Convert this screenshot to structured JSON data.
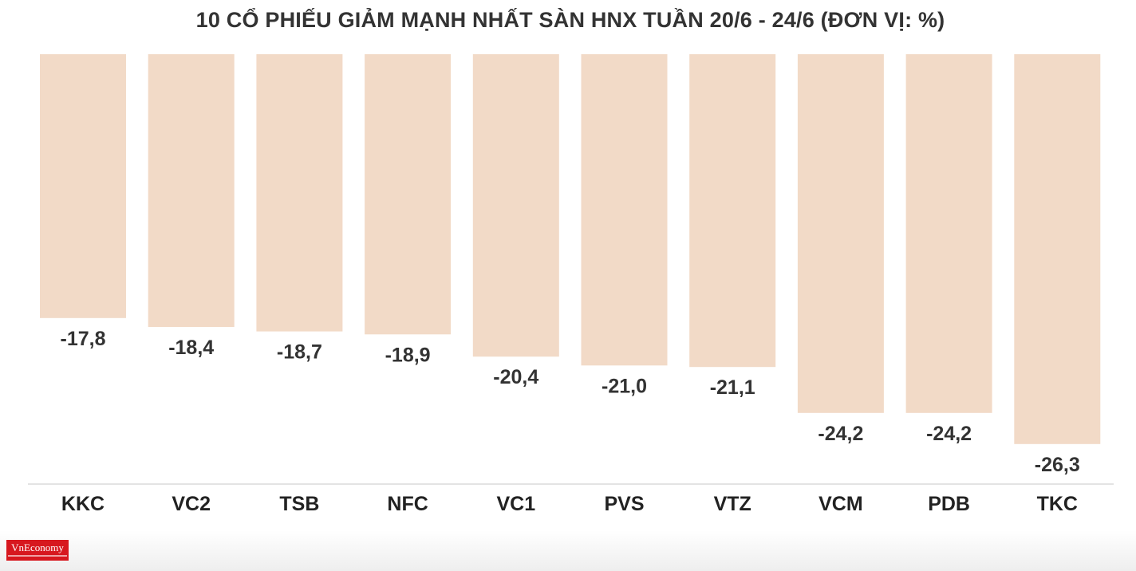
{
  "chart_data": {
    "type": "bar",
    "title": "10 CỔ PHIẾU GIẢM MẠNH NHẤT SÀN HNX TUẦN 20/6 - 24/6 (ĐƠN VỊ: %)",
    "categories": [
      "KKC",
      "VC2",
      "TSB",
      "NFC",
      "VC1",
      "PVS",
      "VTZ",
      "VCM",
      "PDB",
      "TKC"
    ],
    "values": [
      -17.8,
      -18.4,
      -18.7,
      -18.9,
      -20.4,
      -21.0,
      -21.1,
      -24.2,
      -24.2,
      -26.3
    ],
    "value_labels": [
      "-17,8",
      "-18,4",
      "-18,7",
      "-18,9",
      "-20,4",
      "-21,0",
      "-21,1",
      "-24,2",
      "-24,2",
      "-26,3"
    ],
    "ylim": [
      -29,
      0
    ],
    "xlabel": "",
    "ylabel": "",
    "grid": false,
    "colors": {
      "bar": "#f2dac7",
      "baseline": "#e3e3e3",
      "text": "#333333"
    }
  },
  "logo": {
    "text": "VnEconomy",
    "color": "#d7181f"
  }
}
